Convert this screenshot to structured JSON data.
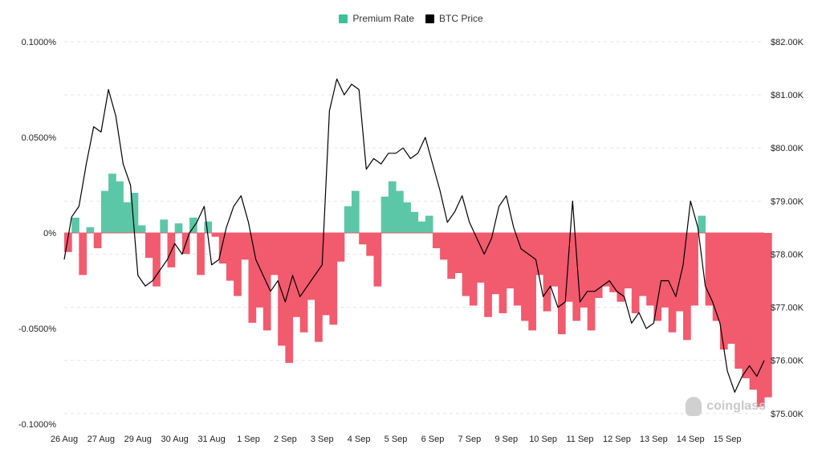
{
  "chart_data": {
    "type": "area",
    "legend": {
      "placement": "top-center",
      "entries": [
        {
          "name": "Premium Rate",
          "color": "#3cc19a"
        },
        {
          "name": "BTC Price",
          "color": "#000000"
        }
      ]
    },
    "y_left": {
      "ticks": [
        0.1,
        0.05,
        0,
        -0.05,
        -0.1
      ],
      "tick_labels": [
        "0.1000%",
        "0.0500%",
        "0%",
        "-0.0500%",
        "-0.1000%"
      ],
      "range": [
        -0.1,
        0.1
      ]
    },
    "y_right": {
      "ticks": [
        82000,
        81000,
        80000,
        79000,
        78000,
        77000,
        76000,
        75000
      ],
      "tick_labels": [
        "$82.00K",
        "$81.00K",
        "$80.00K",
        "$79.00K",
        "$78.00K",
        "$77.00K",
        "$76.00K",
        "$75.00K"
      ],
      "range": [
        74800,
        82000
      ]
    },
    "x_axis": {
      "labels": [
        "26 Aug",
        "27 Aug",
        "29 Aug",
        "30 Aug",
        "31 Aug",
        "1 Sep",
        "2 Sep",
        "3 Sep",
        "4 Sep",
        "5 Sep",
        "6 Sep",
        "7 Sep",
        "9 Sep",
        "10 Sep",
        "11 Sep",
        "12 Sep",
        "13 Sep",
        "14 Sep",
        "15 Sep"
      ],
      "label_days": [
        0,
        1,
        2,
        3,
        4,
        5,
        6,
        7,
        8,
        9,
        10,
        11,
        12,
        13,
        14,
        15,
        16,
        17,
        18
      ],
      "day_range": [
        0,
        19
      ]
    },
    "grid": true,
    "colors": {
      "positive": "#5cc7a6",
      "negative": "#f25a6e",
      "price": "#000000",
      "grid": "#e6e6e6"
    },
    "series": [
      {
        "name": "Premium Rate",
        "unit": "%",
        "day": [
          0,
          0.2,
          0.4,
          0.6,
          0.8,
          1.0,
          1.2,
          1.4,
          1.6,
          1.8,
          2.0,
          2.2,
          2.4,
          2.6,
          2.8,
          3.0,
          3.2,
          3.4,
          3.6,
          3.8,
          4.0,
          4.2,
          4.4,
          4.6,
          4.8,
          5.0,
          5.2,
          5.4,
          5.6,
          5.8,
          6.0,
          6.2,
          6.4,
          6.6,
          6.8,
          7.0,
          7.2,
          7.4,
          7.6,
          7.8,
          8.0,
          8.2,
          8.4,
          8.6,
          8.8,
          9.0,
          9.2,
          9.4,
          9.6,
          9.8,
          10.0,
          10.2,
          10.4,
          10.6,
          10.8,
          11.0,
          11.2,
          11.4,
          11.6,
          11.8,
          12.0,
          12.2,
          12.4,
          12.6,
          12.8,
          13.0,
          13.2,
          13.4,
          13.6,
          13.8,
          14.0,
          14.2,
          14.4,
          14.6,
          14.8,
          15.0,
          15.2,
          15.4,
          15.6,
          15.8,
          16.0,
          16.2,
          16.4,
          16.6,
          16.8,
          17.0,
          17.2,
          17.4,
          17.6,
          17.8,
          18.0,
          18.2,
          18.4,
          18.6,
          18.8,
          19.0
        ],
        "values": [
          -0.01,
          0.008,
          -0.022,
          0.003,
          -0.008,
          0.022,
          0.031,
          0.027,
          0.016,
          0.021,
          0.004,
          -0.013,
          -0.028,
          0.007,
          -0.018,
          0.005,
          -0.011,
          0.008,
          -0.022,
          0.006,
          -0.002,
          -0.016,
          -0.025,
          -0.033,
          -0.014,
          -0.047,
          -0.039,
          -0.051,
          -0.022,
          -0.059,
          -0.068,
          -0.044,
          -0.052,
          -0.035,
          -0.057,
          -0.043,
          -0.048,
          -0.015,
          0.014,
          0.022,
          -0.006,
          -0.012,
          -0.028,
          0.019,
          0.027,
          0.022,
          0.016,
          0.011,
          0.006,
          0.009,
          -0.008,
          -0.014,
          -0.024,
          -0.021,
          -0.033,
          -0.038,
          -0.026,
          -0.044,
          -0.032,
          -0.042,
          -0.029,
          -0.038,
          -0.046,
          -0.051,
          -0.022,
          -0.041,
          -0.028,
          -0.053,
          -0.036,
          -0.046,
          -0.039,
          -0.051,
          -0.034,
          -0.028,
          -0.031,
          -0.036,
          -0.029,
          -0.042,
          -0.033,
          -0.038,
          -0.046,
          -0.039,
          -0.052,
          -0.041,
          -0.056,
          -0.038,
          0.009,
          -0.038,
          -0.046,
          -0.061,
          -0.058,
          -0.071,
          -0.076,
          -0.082,
          -0.091,
          -0.086
        ]
      },
      {
        "name": "BTC Price",
        "unit": "USD",
        "day": [
          0,
          0.2,
          0.4,
          0.6,
          0.8,
          1.0,
          1.2,
          1.4,
          1.6,
          1.8,
          2.0,
          2.2,
          2.4,
          2.6,
          2.8,
          3.0,
          3.2,
          3.4,
          3.6,
          3.8,
          4.0,
          4.2,
          4.4,
          4.6,
          4.8,
          5.0,
          5.2,
          5.4,
          5.6,
          5.8,
          6.0,
          6.2,
          6.4,
          6.6,
          6.8,
          7.0,
          7.2,
          7.4,
          7.6,
          7.8,
          8.0,
          8.2,
          8.4,
          8.6,
          8.8,
          9.0,
          9.2,
          9.4,
          9.6,
          9.8,
          10.0,
          10.2,
          10.4,
          10.6,
          10.8,
          11.0,
          11.2,
          11.4,
          11.6,
          11.8,
          12.0,
          12.2,
          12.4,
          12.6,
          12.8,
          13.0,
          13.2,
          13.4,
          13.6,
          13.8,
          14.0,
          14.2,
          14.4,
          14.6,
          14.8,
          15.0,
          15.2,
          15.4,
          15.6,
          15.8,
          16.0,
          16.2,
          16.4,
          16.6,
          16.8,
          17.0,
          17.2,
          17.4,
          17.6,
          17.8,
          18.0,
          18.2,
          18.4,
          18.6,
          18.8,
          19.0
        ],
        "values": [
          77900,
          78700,
          78900,
          79700,
          80400,
          80300,
          81100,
          80600,
          79700,
          79300,
          77600,
          77400,
          77500,
          77700,
          77900,
          78200,
          78000,
          78400,
          78600,
          78900,
          77800,
          77900,
          78500,
          78900,
          79100,
          78600,
          77900,
          77600,
          77300,
          77500,
          77100,
          77600,
          77200,
          77400,
          77600,
          77800,
          80700,
          81300,
          81000,
          81200,
          81100,
          79600,
          79800,
          79700,
          79900,
          79900,
          80000,
          79800,
          79900,
          80200,
          79700,
          79200,
          78600,
          78800,
          79100,
          78600,
          78300,
          78000,
          78300,
          78900,
          79100,
          78500,
          78100,
          78000,
          77900,
          77200,
          77400,
          77000,
          77100,
          79000,
          77100,
          77300,
          77300,
          77400,
          77500,
          77300,
          77200,
          76700,
          76900,
          76600,
          76700,
          77500,
          77500,
          77200,
          77800,
          79000,
          78500,
          77400,
          77100,
          76700,
          75800,
          75400,
          75700,
          75900,
          75700,
          76000
        ]
      }
    ]
  },
  "watermark": "coinglass"
}
